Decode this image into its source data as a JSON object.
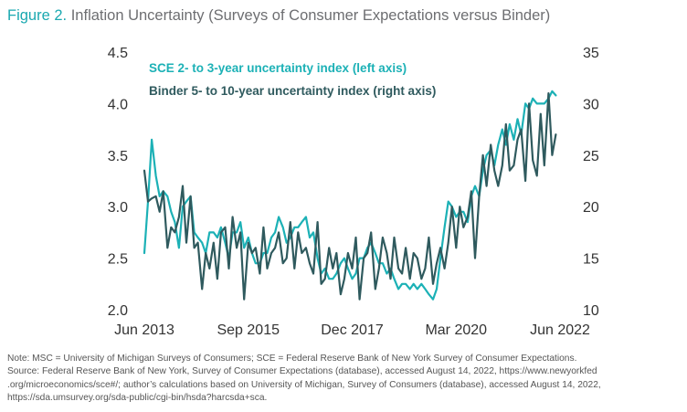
{
  "figure": {
    "label": "Figure 2.",
    "title": "Inflation Uncertainty (Surveys of Consumer Expectations versus Binder)"
  },
  "notes": [
    "Note: MSC = University of Michigan Surveys of Consumers; SCE = Federal Reserve Bank of New York Survey of Consumer Expectations.",
    "Source: Federal Reserve Bank of New York, Survey of Consumer Expectations (database), accessed August 14, 2022, https://www.newyorkfed",
    ".org/microeconomics/sce#/; author’s calculations based on University of Michigan, Survey of Consumers (database), accessed August 14, 2022,",
    "https://sda.umsurvey.org/sda-public/cgi-bin/hsda?harcsda+sca."
  ],
  "chart_data": {
    "type": "line",
    "title": "Inflation Uncertainty (Surveys of Consumer Expectations versus Binder)",
    "x_range": [
      2013.42,
      2022.42
    ],
    "x_ticks": [
      {
        "value": 2013.42,
        "label": "Jun 2013"
      },
      {
        "value": 2015.67,
        "label": "Sep 2015"
      },
      {
        "value": 2017.92,
        "label": "Dec 2017"
      },
      {
        "value": 2020.17,
        "label": "Mar 2020"
      },
      {
        "value": 2022.42,
        "label": "Jun 2022"
      }
    ],
    "y_left": {
      "range": [
        2.0,
        4.5
      ],
      "ticks": [
        "2.0",
        "2.5",
        "3.0",
        "3.5",
        "4.0",
        "4.5"
      ]
    },
    "y_right": {
      "range": [
        10,
        35
      ],
      "ticks": [
        "10",
        "15",
        "20",
        "25",
        "30",
        "35"
      ]
    },
    "series": [
      {
        "name": "SCE 2- to 3-year uncertainty index (left axis)",
        "axis": "left",
        "color": "#1cb1b6",
        "x": [
          2013.42,
          2013.5,
          2013.58,
          2013.67,
          2013.75,
          2013.83,
          2013.92,
          2014.0,
          2014.08,
          2014.17,
          2014.25,
          2014.33,
          2014.42,
          2014.5,
          2014.58,
          2014.67,
          2014.75,
          2014.83,
          2014.92,
          2015.0,
          2015.08,
          2015.17,
          2015.25,
          2015.33,
          2015.42,
          2015.5,
          2015.58,
          2015.67,
          2015.75,
          2015.83,
          2015.92,
          2016.0,
          2016.08,
          2016.17,
          2016.25,
          2016.33,
          2016.42,
          2016.5,
          2016.58,
          2016.67,
          2016.75,
          2016.83,
          2016.92,
          2017.0,
          2017.08,
          2017.17,
          2017.25,
          2017.33,
          2017.42,
          2017.5,
          2017.58,
          2017.67,
          2017.75,
          2017.83,
          2017.92,
          2018.0,
          2018.08,
          2018.17,
          2018.25,
          2018.33,
          2018.42,
          2018.5,
          2018.58,
          2018.67,
          2018.75,
          2018.83,
          2018.92,
          2019.0,
          2019.08,
          2019.17,
          2019.25,
          2019.33,
          2019.42,
          2019.5,
          2019.58,
          2019.67,
          2019.75,
          2019.83,
          2019.92,
          2020.0,
          2020.08,
          2020.17,
          2020.25,
          2020.33,
          2020.42,
          2020.5,
          2020.58,
          2020.67,
          2020.75,
          2020.83,
          2020.92,
          2021.0,
          2021.08,
          2021.17,
          2021.25,
          2021.33,
          2021.42,
          2021.5,
          2021.58,
          2021.67,
          2021.75,
          2021.83,
          2021.92,
          2022.0,
          2022.08,
          2022.17,
          2022.25,
          2022.33
        ],
        "values": [
          2.55,
          3.05,
          3.65,
          3.3,
          3.1,
          3.15,
          3.1,
          2.95,
          2.85,
          2.6,
          3.0,
          3.05,
          3.1,
          2.75,
          2.7,
          2.65,
          2.55,
          2.75,
          2.75,
          2.7,
          2.8,
          2.65,
          2.5,
          2.75,
          2.75,
          2.85,
          2.6,
          2.7,
          2.55,
          2.45,
          2.45,
          2.55,
          2.55,
          2.7,
          2.75,
          2.9,
          2.8,
          2.65,
          2.7,
          2.8,
          2.8,
          2.85,
          2.9,
          2.7,
          2.75,
          2.5,
          2.35,
          2.4,
          2.3,
          2.3,
          2.35,
          2.45,
          2.5,
          2.4,
          2.3,
          2.35,
          2.5,
          2.5,
          2.6,
          2.65,
          2.55,
          2.45,
          2.45,
          2.35,
          2.4,
          2.3,
          2.2,
          2.25,
          2.25,
          2.2,
          2.25,
          2.2,
          2.25,
          2.2,
          2.15,
          2.1,
          2.2,
          2.5,
          2.8,
          3.05,
          3.0,
          2.9,
          2.95,
          2.95,
          2.85,
          3.1,
          3.2,
          3.1,
          3.35,
          3.5,
          3.55,
          3.4,
          3.6,
          3.75,
          3.6,
          3.8,
          3.65,
          3.85,
          3.7,
          4.0,
          3.95,
          4.05,
          4.0,
          4.0,
          4.0,
          4.05,
          4.12,
          4.08
        ]
      },
      {
        "name": "Binder 5- to 10-year uncertainty index (right axis)",
        "axis": "right",
        "color": "#2f5a5e",
        "x": [
          2013.42,
          2013.5,
          2013.58,
          2013.67,
          2013.75,
          2013.83,
          2013.92,
          2014.0,
          2014.08,
          2014.17,
          2014.25,
          2014.33,
          2014.42,
          2014.5,
          2014.58,
          2014.67,
          2014.75,
          2014.83,
          2014.92,
          2015.0,
          2015.08,
          2015.17,
          2015.25,
          2015.33,
          2015.42,
          2015.5,
          2015.58,
          2015.67,
          2015.75,
          2015.83,
          2015.92,
          2016.0,
          2016.08,
          2016.17,
          2016.25,
          2016.33,
          2016.42,
          2016.5,
          2016.58,
          2016.67,
          2016.75,
          2016.83,
          2016.92,
          2017.0,
          2017.08,
          2017.17,
          2017.25,
          2017.33,
          2017.42,
          2017.5,
          2017.58,
          2017.67,
          2017.75,
          2017.83,
          2017.92,
          2018.0,
          2018.08,
          2018.17,
          2018.25,
          2018.33,
          2018.42,
          2018.5,
          2018.58,
          2018.67,
          2018.75,
          2018.83,
          2018.92,
          2019.0,
          2019.08,
          2019.17,
          2019.25,
          2019.33,
          2019.42,
          2019.5,
          2019.58,
          2019.67,
          2019.75,
          2019.83,
          2019.92,
          2020.0,
          2020.08,
          2020.17,
          2020.25,
          2020.33,
          2020.42,
          2020.5,
          2020.58,
          2020.67,
          2020.75,
          2020.83,
          2020.92,
          2021.0,
          2021.08,
          2021.17,
          2021.25,
          2021.33,
          2021.42,
          2021.5,
          2021.58,
          2021.67,
          2021.75,
          2021.83,
          2021.92,
          2022.0,
          2022.08,
          2022.17,
          2022.25,
          2022.33
        ],
        "values": [
          23.5,
          20.5,
          20.8,
          21.0,
          19.5,
          21.5,
          16.0,
          18.0,
          17.5,
          19.0,
          22.0,
          16.5,
          21.0,
          16.0,
          16.5,
          12.0,
          15.5,
          14.0,
          16.5,
          13.0,
          17.5,
          18.0,
          14.0,
          19.0,
          16.0,
          17.5,
          11.0,
          16.5,
          15.5,
          16.0,
          13.5,
          18.0,
          14.0,
          15.5,
          16.0,
          17.5,
          14.5,
          15.0,
          18.5,
          14.0,
          17.5,
          15.5,
          16.0,
          14.5,
          13.5,
          18.5,
          12.5,
          13.0,
          16.0,
          14.0,
          15.5,
          11.5,
          13.0,
          15.5,
          14.0,
          17.0,
          11.0,
          15.0,
          15.5,
          17.5,
          12.0,
          14.0,
          17.0,
          15.5,
          13.0,
          17.0,
          14.0,
          13.5,
          16.0,
          13.0,
          15.5,
          15.0,
          13.0,
          14.0,
          17.0,
          12.5,
          14.5,
          16.0,
          14.0,
          16.5,
          20.0,
          16.0,
          20.0,
          18.0,
          19.0,
          21.5,
          15.0,
          21.0,
          25.0,
          22.0,
          26.0,
          23.5,
          22.0,
          24.0,
          28.0,
          23.5,
          24.0,
          26.5,
          27.5,
          22.5,
          30.0,
          24.5,
          23.0,
          29.0,
          24.0,
          31.0,
          25.0,
          27.0
        ]
      }
    ]
  }
}
